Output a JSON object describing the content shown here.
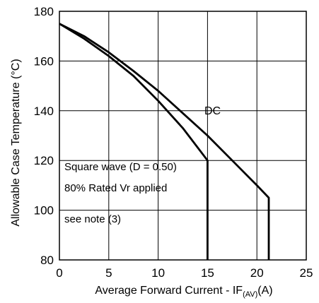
{
  "chart_data": {
    "type": "line",
    "title": "",
    "xlabel": {
      "main": "Average Forward Current - I",
      "sub_letter": "F",
      "subscript": "(AV)",
      "unit": "(A)"
    },
    "ylabel": "Allowable Case Temperature (°C)",
    "xlim": [
      0,
      25
    ],
    "ylim": [
      80,
      180
    ],
    "x_ticks": [
      0,
      5,
      10,
      15,
      20,
      25
    ],
    "y_ticks": [
      80,
      100,
      120,
      140,
      160,
      180
    ],
    "grid": true,
    "annotations": [
      "Square wave (D = 0.50)",
      "80% Rated Vr applied",
      "see note (3)"
    ],
    "series": [
      {
        "name": "DC",
        "x": [
          0,
          2.5,
          5,
          7.5,
          10,
          12.5,
          15,
          17.5,
          20,
          21.2,
          21.2
        ],
        "y": [
          175,
          170,
          163.5,
          156,
          148,
          139,
          130,
          120,
          110,
          105,
          80
        ]
      },
      {
        "name": "",
        "x": [
          0,
          2.5,
          5,
          7.5,
          10,
          12.5,
          15,
          15
        ],
        "y": [
          175,
          169,
          162,
          154,
          144,
          133,
          120,
          80
        ]
      }
    ],
    "colors": {
      "line": "#000000",
      "grid": "#000000"
    }
  }
}
